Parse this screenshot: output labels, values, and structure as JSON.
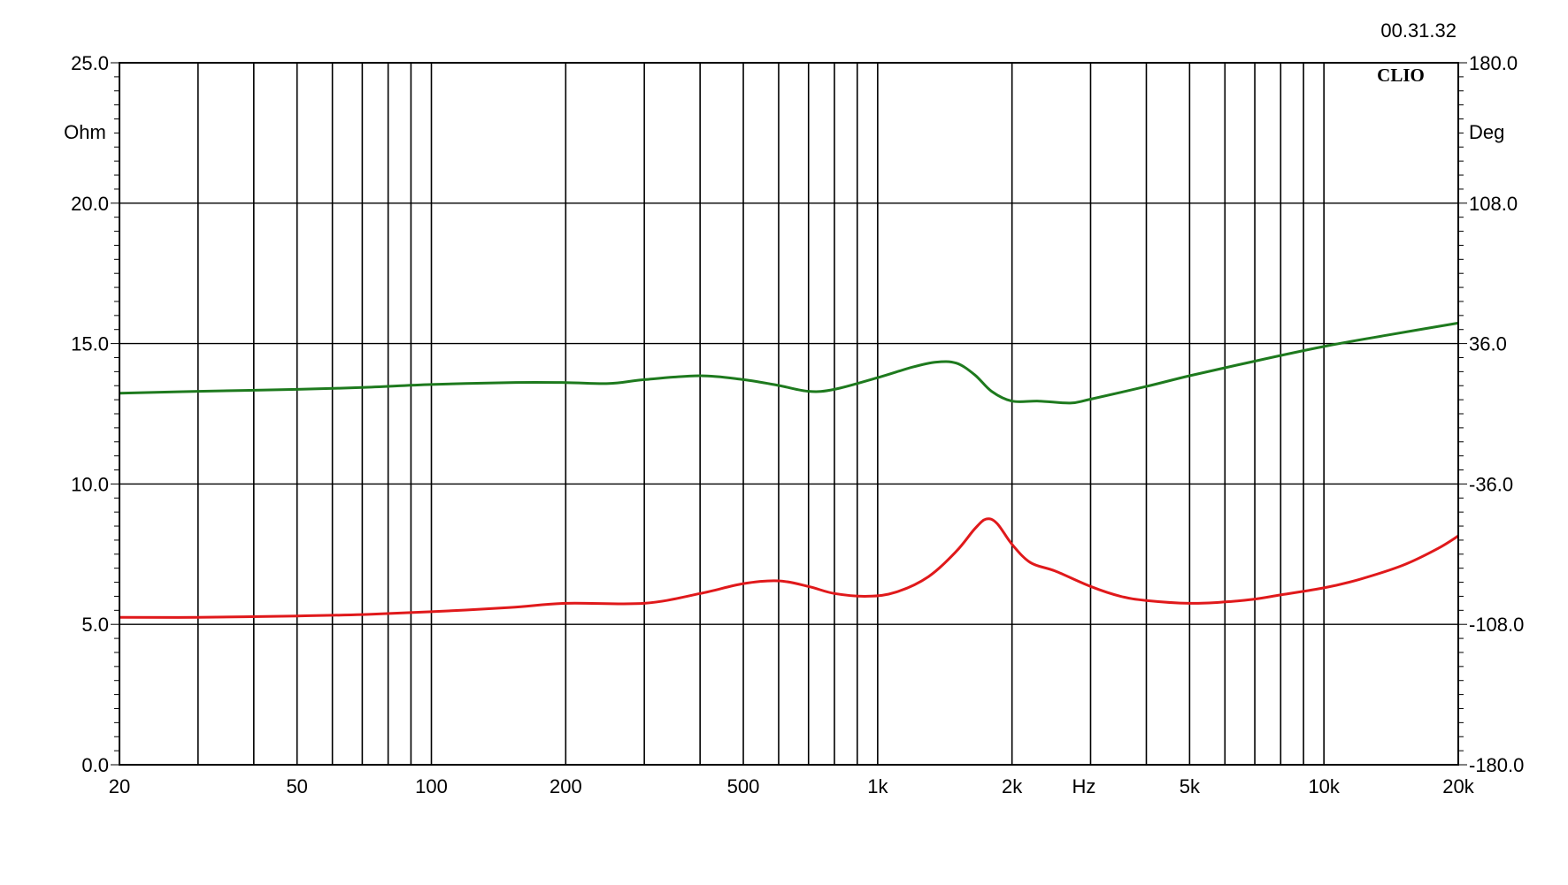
{
  "timestamp": "00.31.32",
  "brand": "CLIO",
  "chart_data": {
    "type": "line",
    "x_scale": "log",
    "xlim": [
      20,
      20000
    ],
    "x_unit": "Hz",
    "x_tick_labels": [
      {
        "x": 20,
        "label": "20"
      },
      {
        "x": 50,
        "label": "50"
      },
      {
        "x": 100,
        "label": "100"
      },
      {
        "x": 200,
        "label": "200"
      },
      {
        "x": 500,
        "label": "500"
      },
      {
        "x": 1000,
        "label": "1k"
      },
      {
        "x": 2000,
        "label": "2k"
      },
      {
        "x": 5000,
        "label": "5k"
      },
      {
        "x": 10000,
        "label": "10k"
      },
      {
        "x": 20000,
        "label": "20k"
      }
    ],
    "left_axis": {
      "unit": "Ohm",
      "lim": [
        0,
        25
      ],
      "ticks": [
        0,
        5,
        10,
        15,
        20,
        25
      ],
      "tick_labels": [
        "0.0",
        "5.0",
        "10.0",
        "15.0",
        "20.0",
        "25.0"
      ]
    },
    "right_axis": {
      "unit": "Deg",
      "lim": [
        -180,
        180
      ],
      "ticks": [
        -180,
        -108,
        -36,
        36,
        108,
        180
      ],
      "tick_labels": [
        "-180.0",
        "-108.0",
        "-36.0",
        "36.0",
        "108.0",
        "180.0"
      ]
    },
    "grid": true,
    "series": [
      {
        "axis": "left",
        "color": "#e0191b",
        "points": [
          [
            20,
            5.25
          ],
          [
            30,
            5.25
          ],
          [
            50,
            5.3
          ],
          [
            70,
            5.35
          ],
          [
            100,
            5.45
          ],
          [
            150,
            5.6
          ],
          [
            200,
            5.75
          ],
          [
            300,
            5.75
          ],
          [
            400,
            6.1
          ],
          [
            500,
            6.45
          ],
          [
            600,
            6.55
          ],
          [
            700,
            6.35
          ],
          [
            800,
            6.1
          ],
          [
            950,
            6.0
          ],
          [
            1100,
            6.15
          ],
          [
            1300,
            6.7
          ],
          [
            1500,
            7.6
          ],
          [
            1650,
            8.4
          ],
          [
            1750,
            8.75
          ],
          [
            1850,
            8.6
          ],
          [
            2000,
            7.85
          ],
          [
            2200,
            7.2
          ],
          [
            2500,
            6.9
          ],
          [
            3000,
            6.35
          ],
          [
            3500,
            6.0
          ],
          [
            4000,
            5.85
          ],
          [
            5000,
            5.75
          ],
          [
            6000,
            5.8
          ],
          [
            7000,
            5.9
          ],
          [
            8000,
            6.05
          ],
          [
            10000,
            6.3
          ],
          [
            12000,
            6.6
          ],
          [
            15000,
            7.1
          ],
          [
            18000,
            7.7
          ],
          [
            21000,
            8.15
          ]
        ]
      },
      {
        "axis": "right",
        "color": "#1e7a1e",
        "points": [
          [
            20,
            10.5
          ],
          [
            30,
            11.5
          ],
          [
            50,
            12.5
          ],
          [
            70,
            13.5
          ],
          [
            100,
            15.0
          ],
          [
            150,
            16.0
          ],
          [
            200,
            16.0
          ],
          [
            250,
            15.5
          ],
          [
            300,
            17.5
          ],
          [
            400,
            19.5
          ],
          [
            500,
            17.5
          ],
          [
            600,
            14.5
          ],
          [
            700,
            11.5
          ],
          [
            800,
            12.5
          ],
          [
            1000,
            18.5
          ],
          [
            1200,
            24.0
          ],
          [
            1350,
            26.5
          ],
          [
            1500,
            26.0
          ],
          [
            1650,
            20.0
          ],
          [
            1800,
            11.5
          ],
          [
            2000,
            6.5
          ],
          [
            2300,
            6.5
          ],
          [
            2700,
            5.5
          ],
          [
            3000,
            7.5
          ],
          [
            4000,
            14.0
          ],
          [
            5000,
            19.5
          ],
          [
            7000,
            27.0
          ],
          [
            10000,
            34.5
          ],
          [
            14000,
            40.5
          ],
          [
            21000,
            46.5
          ]
        ]
      }
    ]
  }
}
